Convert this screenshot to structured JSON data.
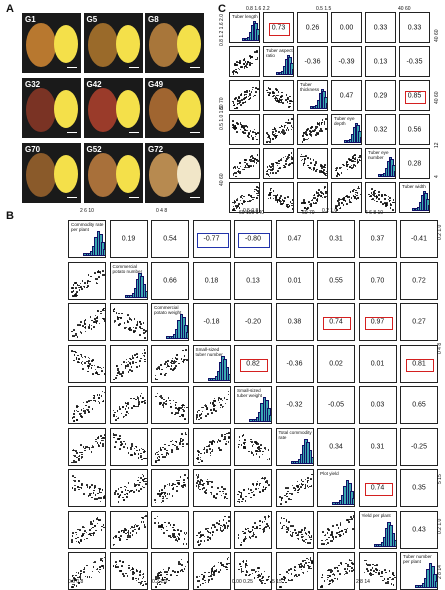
{
  "panel_labels": {
    "a": "A",
    "b": "B",
    "c": "C"
  },
  "panelA": {
    "tiles": [
      {
        "label": "G1",
        "skin": "#b8782f"
      },
      {
        "label": "G5",
        "skin": "#9a6a2a"
      },
      {
        "label": "G8",
        "skin": "#a8763a"
      },
      {
        "label": "G32",
        "skin": "#7a3324"
      },
      {
        "label": "G42",
        "skin": "#9a3b2a"
      },
      {
        "label": "G49",
        "skin": "#a06530"
      },
      {
        "label": "G70",
        "skin": "#8a5a2a"
      },
      {
        "label": "G52",
        "skin": "#a8703a"
      },
      {
        "label": "G72",
        "skin": "#b78a50"
      }
    ],
    "scale_label": "1 cm"
  },
  "panelC": {
    "variables": [
      "Tuber length",
      "Tuber aspect ratio",
      "Tuber thickness",
      "Tuber eye depth",
      "Tuber eye number",
      "Tuber width"
    ],
    "top_ticks": [
      "0.8 1.6 2.2",
      "0.5 1.5",
      "40 60"
    ],
    "right_ticks": [
      "40 60",
      "40 60",
      "12",
      "4"
    ],
    "left_ticks": [
      "0.8 1.2 1.6 2.0",
      "60 70",
      "0.5 1.0 1.5",
      "40 60"
    ],
    "bottom_ticks": [
      "60 100 140",
      "60 70",
      "4 6 8 10"
    ],
    "correlations": [
      [
        null,
        "0.73",
        "0.26",
        "0.00",
        "0.33",
        "0.33"
      ],
      [
        null,
        null,
        "-0.36",
        "-0.39",
        "0.13",
        "-0.35"
      ],
      [
        null,
        null,
        null,
        "0.47",
        "0.29",
        "0.85"
      ],
      [
        null,
        null,
        null,
        null,
        "0.32",
        "0.56"
      ],
      [
        null,
        null,
        null,
        null,
        null,
        "0.28"
      ]
    ],
    "highlight_red": [
      "0.73",
      "0.85"
    ]
  },
  "panelB": {
    "variables": [
      "Commodity rate per plant",
      "Commercial potato number",
      "Commercial potato weight",
      "Small-sized tuber number",
      "Small-sized tuber weight",
      "Total commodity rate",
      "Plot yield",
      "Yield per plant",
      "Tuber number per plant"
    ],
    "top_ticks": [
      "2 6 10",
      "0 4 8",
      "0.5 0.8",
      "0.2 1.0"
    ],
    "right_ticks": [
      "0.2 1.0",
      "0 4 8",
      "5 15",
      "0.2 1.0",
      "2 8 14"
    ],
    "bottom_ticks": [
      "0.6 0.8",
      "0.2 1.0",
      "0.00 0.25",
      "5 15",
      "2 8 14"
    ],
    "correlations": [
      [
        null,
        "0.19",
        "0.54",
        "-0.77",
        "-0.80",
        "0.47",
        "0.31",
        "0.37",
        "-0.41"
      ],
      [
        null,
        null,
        "0.66",
        "0.18",
        "0.13",
        "0.01",
        "0.55",
        "0.70",
        "0.72"
      ],
      [
        null,
        null,
        null,
        "-0.18",
        "-0.20",
        "0.38",
        "0.74",
        "0.97",
        "0.27"
      ],
      [
        null,
        null,
        null,
        null,
        "0.82",
        "-0.36",
        "0.02",
        "0.01",
        "0.81"
      ],
      [
        null,
        null,
        null,
        null,
        null,
        "-0.32",
        "-0.05",
        "0.03",
        "0.65"
      ],
      [
        null,
        null,
        null,
        null,
        null,
        null,
        "0.34",
        "0.31",
        "-0.25"
      ],
      [
        null,
        null,
        null,
        null,
        null,
        null,
        null,
        "0.74",
        "0.35"
      ],
      [
        null,
        null,
        null,
        null,
        null,
        null,
        null,
        null,
        "0.43"
      ]
    ],
    "highlight_red": [
      "0.97",
      "0.82",
      "0.81",
      "0.74"
    ],
    "highlight_blue": [
      "-0.77",
      "-0.80"
    ]
  }
}
